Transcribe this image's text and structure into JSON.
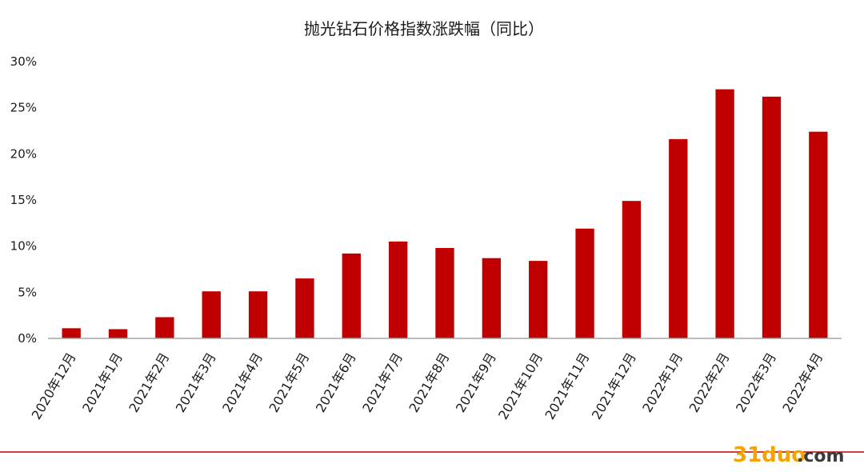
{
  "chart_data": {
    "type": "bar",
    "title": "抛光钻石价格指数涨跌幅（同比）",
    "categories": [
      "2020年12月",
      "2021年1月",
      "2021年2月",
      "2021年3月",
      "2021年4月",
      "2021年5月",
      "2021年6月",
      "2021年7月",
      "2021年8月",
      "2021年9月",
      "2021年10月",
      "2021年11月",
      "2021年12月",
      "2022年1月",
      "2022年2月",
      "2022年3月",
      "2022年4月"
    ],
    "values": [
      1.1,
      1.0,
      2.3,
      5.1,
      5.1,
      6.5,
      9.2,
      10.5,
      9.8,
      8.7,
      8.4,
      11.9,
      14.9,
      21.6,
      27.0,
      26.2,
      22.4
    ],
    "value_unit": "%",
    "ylim": [
      0,
      30
    ],
    "yticks": [
      "0%",
      "5%",
      "10%",
      "15%",
      "20%",
      "25%",
      "30%"
    ],
    "grid": false,
    "bar_color": "#c00000"
  },
  "watermark": {
    "main": "31duo",
    "suffix": ".com"
  },
  "colors": {
    "axis": "#a6a6a6",
    "footer_rule": "#c00000"
  }
}
